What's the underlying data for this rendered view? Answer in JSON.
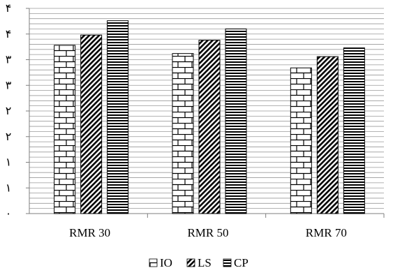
{
  "chart_data": {
    "type": "bar",
    "categories": [
      "RMR 30",
      "RMR 50",
      "RMR 70"
    ],
    "series": [
      {
        "name": "IO",
        "values": [
          3.28,
          3.12,
          2.84
        ],
        "pattern": "brick"
      },
      {
        "name": "LS",
        "values": [
          3.48,
          3.38,
          3.06
        ],
        "pattern": "diagonal"
      },
      {
        "name": "CP",
        "values": [
          3.76,
          3.6,
          3.23
        ],
        "pattern": "horizontal"
      }
    ],
    "y_tick_labels": [
      "۰",
      "۱",
      "۱",
      "۲",
      "۲",
      "۳",
      "۳",
      "۴",
      "۴"
    ],
    "ylim": [
      0,
      4
    ],
    "grid": true,
    "legend_position": "bottom",
    "colors": {
      "bar_fill": "#ffffff",
      "pattern": "#000000",
      "grid": "#9a9a9a",
      "axis": "#7f7f7f"
    }
  }
}
